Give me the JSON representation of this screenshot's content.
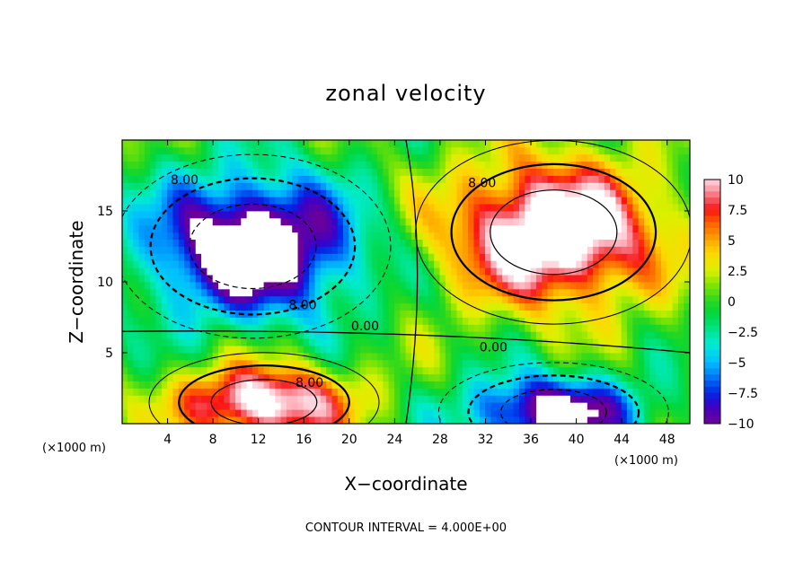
{
  "chart_data": {
    "type": "heatmap",
    "title": "zonal velocity",
    "xlabel": "X−coordinate",
    "ylabel": "Z−coordinate",
    "x_unit_left": "(×1000 m)",
    "x_unit_right": "(×1000 m)",
    "xlim": [
      0,
      50
    ],
    "ylim": [
      0,
      20
    ],
    "x_ticks": [
      4,
      8,
      12,
      16,
      20,
      24,
      28,
      32,
      36,
      40,
      44,
      48
    ],
    "x_tick_labels": [
      "4",
      "8",
      "12",
      "16",
      "20",
      "24",
      "28",
      "32",
      "36",
      "40",
      "44",
      "48"
    ],
    "y_ticks": [
      5,
      10,
      15
    ],
    "y_tick_labels": [
      "5",
      "10",
      "15"
    ],
    "colorbar": {
      "range": [
        -10,
        10
      ],
      "ticks": [
        10,
        7.5,
        5,
        2.5,
        0,
        -2.5,
        -5,
        -7.5,
        -10
      ],
      "tick_labels": [
        "10",
        "7.5",
        "5",
        "2.5",
        "0",
        "−2.5",
        "−5",
        "−7.5",
        "−10"
      ]
    },
    "contour_labels": [
      {
        "text": "8.00",
        "x": 5.5,
        "z": 17.2
      },
      {
        "text": "8.00",
        "x": 15.9,
        "z": 8.4
      },
      {
        "text": "0.00",
        "x": 21.4,
        "z": 6.9
      },
      {
        "text": "8.00",
        "x": 31.7,
        "z": 17.0
      },
      {
        "text": "0.00",
        "x": 32.7,
        "z": 5.4
      },
      {
        "text": "8.00",
        "x": 16.5,
        "z": 2.9
      }
    ],
    "features": [
      {
        "kind": "jet",
        "sign": "negative",
        "center_x": 11.5,
        "center_z": 12.5,
        "peak": -14
      },
      {
        "kind": "jet",
        "sign": "positive",
        "center_x": 38.0,
        "center_z": 13.5,
        "peak": 14
      },
      {
        "kind": "jet",
        "sign": "positive",
        "center_x": 12.5,
        "center_z": 1.5,
        "peak": 12
      },
      {
        "kind": "jet",
        "sign": "negative",
        "center_x": 38.0,
        "center_z": 0.8,
        "peak": -12
      }
    ],
    "contour_interval_text": "CONTOUR INTERVAL = 4.000E+00"
  }
}
